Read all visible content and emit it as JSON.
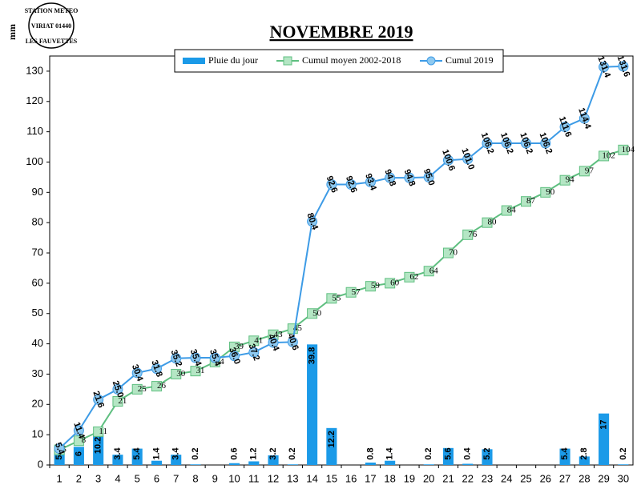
{
  "logo": {
    "lines": [
      "STATION METEO",
      "VIRIAT 01440",
      "LES FAUVETTES"
    ]
  },
  "chart_data": {
    "type": "bar-line",
    "title": "NOVEMBRE 2019",
    "y_label": "mm",
    "categories": [
      "1",
      "2",
      "3",
      "4",
      "5",
      "6",
      "7",
      "8",
      "9",
      "10",
      "11",
      "12",
      "13",
      "14",
      "15",
      "16",
      "17",
      "18",
      "19",
      "20",
      "21",
      "22",
      "23",
      "24",
      "25",
      "26",
      "27",
      "28",
      "29",
      "30"
    ],
    "ylim": [
      0,
      135
    ],
    "yticks": [
      0,
      10,
      20,
      30,
      40,
      50,
      60,
      70,
      80,
      90,
      100,
      110,
      120,
      130
    ],
    "grid": false,
    "legend": "top",
    "series": [
      {
        "name": "Pluie du jour",
        "kind": "bar",
        "color": "#1b9ae8",
        "values": [
          5.4,
          6,
          10.2,
          3.4,
          5.4,
          1.4,
          3.4,
          0.2,
          null,
          0.6,
          1.2,
          3.2,
          0.2,
          39.8,
          12.2,
          null,
          0.8,
          1.4,
          null,
          0.2,
          5.6,
          0.4,
          5.2,
          null,
          null,
          null,
          5.4,
          2.8,
          17,
          0.2
        ]
      },
      {
        "name": "Cumul moyen 2002-2018",
        "kind": "line",
        "marker": "square",
        "color": "#5fbf80",
        "values": [
          5,
          8,
          11,
          21,
          25,
          26,
          30,
          31,
          34,
          39,
          41,
          43,
          45,
          50,
          55,
          57,
          59,
          60,
          62,
          64,
          70,
          76,
          80,
          84,
          87,
          90,
          94,
          97,
          102,
          104
        ]
      },
      {
        "name": "Cumul 2019",
        "kind": "line",
        "marker": "circle",
        "color": "#3d9be6",
        "values": [
          5.4,
          11.4,
          21.6,
          25,
          30.4,
          31.8,
          35.2,
          35.4,
          35.4,
          36,
          37.2,
          40.4,
          40.6,
          80.4,
          92.6,
          92.6,
          93.4,
          94.8,
          94.8,
          95,
          100.6,
          101,
          106.2,
          106.2,
          106.2,
          106.2,
          111.6,
          114.4,
          131.4,
          131.6
        ],
        "value_labels": [
          "5.4",
          "11.4",
          "21.6",
          "25.0",
          "30.4",
          "31.8",
          "35.2",
          "35.4",
          "35.4",
          "36.0",
          "37.2",
          "40.4",
          "40.6",
          "80.4",
          "92.6",
          "92.6",
          "93.4",
          "94.8",
          "94.8",
          "95.0",
          "100.6",
          "101.0",
          "106.2",
          "106.2",
          "106.2",
          "106.2",
          "111.6",
          "114.4",
          "131.4",
          "131.6"
        ]
      }
    ]
  }
}
